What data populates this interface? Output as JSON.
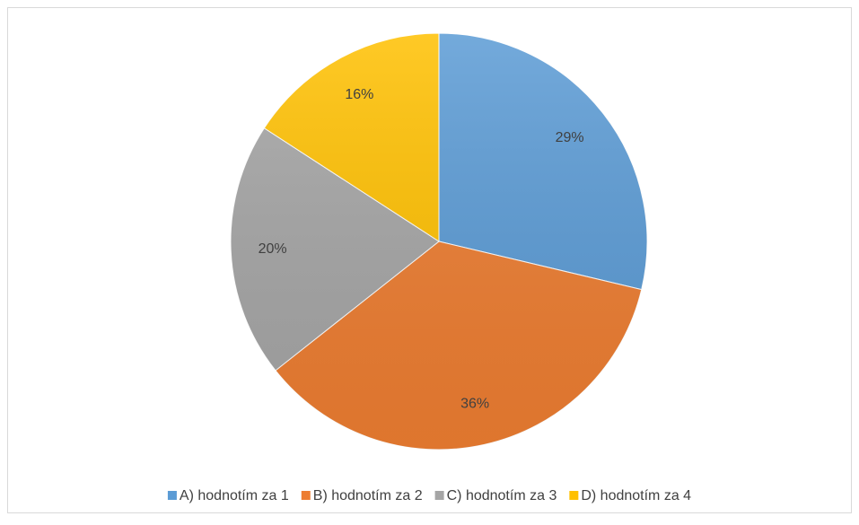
{
  "chart_data": {
    "type": "pie",
    "categories": [
      "A) hodnotím za 1",
      "B) hodnotím za 2",
      "C) hodnotím za 3",
      "D) hodnotím za 4"
    ],
    "values": [
      29,
      36,
      20,
      16
    ],
    "value_labels": [
      "29%",
      "36%",
      "20%",
      "16%"
    ],
    "colors": [
      "#5b9bd5",
      "#ed7d31",
      "#a5a5a5",
      "#ffc000"
    ],
    "legend": "bottom"
  }
}
